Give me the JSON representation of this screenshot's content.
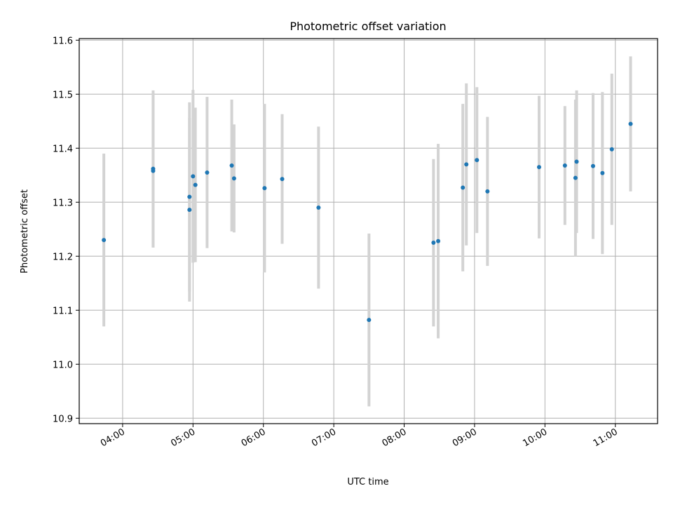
{
  "chart_data": {
    "type": "scatter",
    "title": "Photometric offset variation",
    "xlabel": "UTC time",
    "ylabel": "Photometric offset",
    "x_is_time": true,
    "xlim": [
      "03:23",
      "11:36"
    ],
    "ylim": [
      10.89,
      11.603
    ],
    "x_ticks": [
      "04:00",
      "05:00",
      "06:00",
      "07:00",
      "08:00",
      "09:00",
      "10:00",
      "11:00"
    ],
    "y_ticks": [
      10.9,
      11.0,
      11.1,
      11.2,
      11.3,
      11.4,
      11.5,
      11.6
    ],
    "y_tick_labels": [
      "10.9",
      "11.0",
      "11.1",
      "11.2",
      "11.3",
      "11.4",
      "11.5",
      "11.6"
    ],
    "grid": true,
    "colors": {
      "point": "#1f77b4",
      "errorbar": "#d3d3d3",
      "grid": "#b0b0b0"
    },
    "points": [
      {
        "x": "03:44",
        "y": 11.23,
        "err": 0.16
      },
      {
        "x": "04:26",
        "y": 11.362,
        "err": 0.145
      },
      {
        "x": "04:26",
        "y": 11.358,
        "err": 0.142
      },
      {
        "x": "04:57",
        "y": 11.286,
        "err": 0.17
      },
      {
        "x": "04:57",
        "y": 11.31,
        "err": 0.175
      },
      {
        "x": "05:00",
        "y": 11.348,
        "err": 0.16
      },
      {
        "x": "05:02",
        "y": 11.332,
        "err": 0.143
      },
      {
        "x": "05:12",
        "y": 11.355,
        "err": 0.14
      },
      {
        "x": "05:33",
        "y": 11.368,
        "err": 0.122
      },
      {
        "x": "05:35",
        "y": 11.344,
        "err": 0.1
      },
      {
        "x": "06:01",
        "y": 11.326,
        "err": 0.156
      },
      {
        "x": "06:16",
        "y": 11.343,
        "err": 0.12
      },
      {
        "x": "06:47",
        "y": 11.29,
        "err": 0.15
      },
      {
        "x": "07:30",
        "y": 11.082,
        "err": 0.16
      },
      {
        "x": "08:25",
        "y": 11.225,
        "err": 0.155
      },
      {
        "x": "08:29",
        "y": 11.228,
        "err": 0.18
      },
      {
        "x": "08:50",
        "y": 11.327,
        "err": 0.155
      },
      {
        "x": "08:53",
        "y": 11.37,
        "err": 0.15
      },
      {
        "x": "09:02",
        "y": 11.378,
        "err": 0.135
      },
      {
        "x": "09:11",
        "y": 11.32,
        "err": 0.138
      },
      {
        "x": "09:55",
        "y": 11.365,
        "err": 0.132
      },
      {
        "x": "10:17",
        "y": 11.368,
        "err": 0.11
      },
      {
        "x": "10:26",
        "y": 11.345,
        "err": 0.145
      },
      {
        "x": "10:27",
        "y": 11.375,
        "err": 0.132
      },
      {
        "x": "10:41",
        "y": 11.367,
        "err": 0.135
      },
      {
        "x": "10:49",
        "y": 11.354,
        "err": 0.15
      },
      {
        "x": "10:57",
        "y": 11.398,
        "err": 0.14
      },
      {
        "x": "11:13",
        "y": 11.445,
        "err": 0.125
      }
    ]
  }
}
